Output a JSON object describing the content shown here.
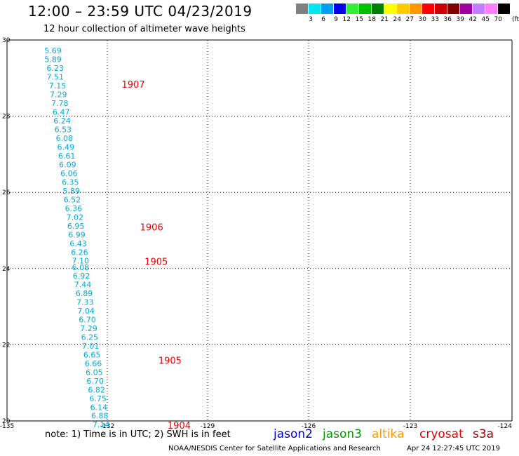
{
  "header": {
    "title": "12:00 – 23:59 UTC 04/23/2019",
    "subtitle": "12 hour collection of altimeter wave heights"
  },
  "colorbar": {
    "unit": "(ft)",
    "colors": [
      "#808080",
      "#00e5ee",
      "#00a0f0",
      "#0000ee",
      "#33ee33",
      "#00c000",
      "#008000",
      "#ffff00",
      "#ffcc00",
      "#ff9900",
      "#ff0000",
      "#cc0000",
      "#800000",
      "#a000a0",
      "#c080ff",
      "#ff80ff",
      "#000000"
    ],
    "labels": [
      "3",
      "6",
      "9",
      "12",
      "15",
      "18",
      "21",
      "24",
      "27",
      "30",
      "33",
      "36",
      "39",
      "42",
      "45",
      "70"
    ]
  },
  "chart_data": {
    "type": "scatter",
    "title": "12:00 – 23:59 UTC 04/23/2019",
    "subtitle": "12 hour collection of altimeter wave heights",
    "xlim": [
      -135,
      -124
    ],
    "ylim": [
      20,
      30
    ],
    "x_ticks": [
      "-135",
      "-132",
      "-129",
      "-126",
      "-123",
      "-124"
    ],
    "y_ticks": [
      "20",
      "22",
      "24",
      "26",
      "28",
      "30"
    ],
    "grid": true,
    "wave_heights_ft": [
      {
        "lon": -134.0,
        "lat": 29.65,
        "value": "5.69"
      },
      {
        "lon": -134.0,
        "lat": 29.42,
        "value": "5.89"
      },
      {
        "lon": -133.95,
        "lat": 29.19,
        "value": "6.23"
      },
      {
        "lon": -133.95,
        "lat": 28.96,
        "value": "7.51"
      },
      {
        "lon": -133.9,
        "lat": 28.73,
        "value": "7.15"
      },
      {
        "lon": -133.88,
        "lat": 28.5,
        "value": "7.29"
      },
      {
        "lon": -133.85,
        "lat": 28.27,
        "value": "7.78"
      },
      {
        "lon": -133.82,
        "lat": 28.04,
        "value": "6.47"
      },
      {
        "lon": -133.8,
        "lat": 27.81,
        "value": "6.24"
      },
      {
        "lon": -133.78,
        "lat": 27.58,
        "value": "6.53"
      },
      {
        "lon": -133.75,
        "lat": 27.35,
        "value": "6.08"
      },
      {
        "lon": -133.72,
        "lat": 27.12,
        "value": "6.49"
      },
      {
        "lon": -133.7,
        "lat": 26.89,
        "value": "6.61"
      },
      {
        "lon": -133.68,
        "lat": 26.66,
        "value": "6.09"
      },
      {
        "lon": -133.65,
        "lat": 26.43,
        "value": "6.06"
      },
      {
        "lon": -133.62,
        "lat": 26.2,
        "value": "6.35"
      },
      {
        "lon": -133.6,
        "lat": 25.97,
        "value": "5.89"
      },
      {
        "lon": -133.58,
        "lat": 25.74,
        "value": "6.52"
      },
      {
        "lon": -133.55,
        "lat": 25.51,
        "value": "6.36"
      },
      {
        "lon": -133.52,
        "lat": 25.28,
        "value": "7.02"
      },
      {
        "lon": -133.5,
        "lat": 25.05,
        "value": "6.95"
      },
      {
        "lon": -133.48,
        "lat": 24.82,
        "value": "6.99"
      },
      {
        "lon": -133.45,
        "lat": 24.59,
        "value": "6.43"
      },
      {
        "lon": -133.42,
        "lat": 24.36,
        "value": "6.26"
      },
      {
        "lon": -133.4,
        "lat": 24.13,
        "value": "7.10"
      },
      {
        "lon": -133.4,
        "lat": 23.96,
        "value": "6.08"
      },
      {
        "lon": -133.38,
        "lat": 23.74,
        "value": "6.92"
      },
      {
        "lon": -133.35,
        "lat": 23.51,
        "value": "7.44"
      },
      {
        "lon": -133.32,
        "lat": 23.28,
        "value": "6.89"
      },
      {
        "lon": -133.3,
        "lat": 23.05,
        "value": "7.33"
      },
      {
        "lon": -133.28,
        "lat": 22.82,
        "value": "7.04"
      },
      {
        "lon": -133.25,
        "lat": 22.59,
        "value": "6.70"
      },
      {
        "lon": -133.22,
        "lat": 22.36,
        "value": "7.29"
      },
      {
        "lon": -133.2,
        "lat": 22.13,
        "value": "6.25"
      },
      {
        "lon": -133.18,
        "lat": 21.9,
        "value": "7.01"
      },
      {
        "lon": -133.15,
        "lat": 21.67,
        "value": "6.65"
      },
      {
        "lon": -133.12,
        "lat": 21.44,
        "value": "6.66"
      },
      {
        "lon": -133.1,
        "lat": 21.21,
        "value": "6.05"
      },
      {
        "lon": -133.08,
        "lat": 20.98,
        "value": "6.70"
      },
      {
        "lon": -133.05,
        "lat": 20.75,
        "value": "6.82"
      },
      {
        "lon": -133.02,
        "lat": 20.52,
        "value": "6.75"
      },
      {
        "lon": -133.0,
        "lat": 20.29,
        "value": "6.14"
      },
      {
        "lon": -132.98,
        "lat": 20.06,
        "value": "6.88"
      },
      {
        "lon": -132.95,
        "lat": 19.83,
        "value": "7.14"
      }
    ],
    "time_labels": [
      {
        "lon": -132.25,
        "lat": 28.75,
        "text": "1907"
      },
      {
        "lon": -131.85,
        "lat": 25.0,
        "text": "1906"
      },
      {
        "lon": -131.75,
        "lat": 24.1,
        "text": "1905"
      },
      {
        "lon": -131.45,
        "lat": 21.5,
        "text": "1905"
      },
      {
        "lon": -131.25,
        "lat": 19.8,
        "text": "1904"
      }
    ],
    "label_color": "#00aadd",
    "time_color": "#ee0000"
  },
  "footer": {
    "note": "note:  1) Time is in UTC;  2) SWH is in feet",
    "legend": [
      {
        "label": "jason2",
        "color": "#0000cc"
      },
      {
        "label": "jason3",
        "color": "#009900"
      },
      {
        "label": "altika",
        "color": "#ff9900"
      },
      {
        "label": "cryosat",
        "color": "#dd0000"
      },
      {
        "label": "s3a",
        "color": "#990000"
      }
    ],
    "credit": "NOAA/NESDIS Center for Satellite Applications and Research",
    "timestamp": "Apr 24 12:27:45 UTC 2019"
  }
}
